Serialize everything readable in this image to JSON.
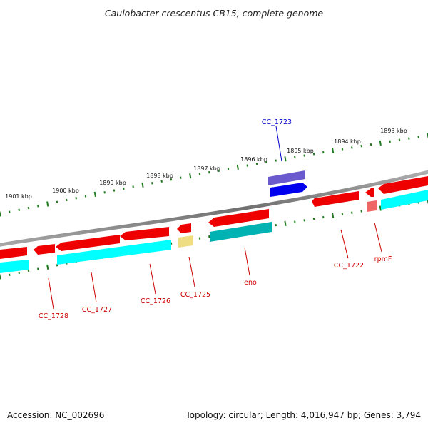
{
  "title": "Caulobacter crescentus CB15, complete genome",
  "footer": {
    "accession": "Accession: NC_002696",
    "topology": "Topology: circular; Length: 4,016,947 bp; Genes: 3,794"
  },
  "colors": {
    "backbone": "#8a8a8a",
    "tick": "#1f7a1f",
    "gene_red": "#ee0000",
    "gene_cyan": "#00ffff",
    "gene_blue": "#0000ee",
    "gene_purple": "#6a5acd",
    "gene_teal": "#00b2b2",
    "gene_yellow": "#eedd82",
    "gene_pink": "#ee6666",
    "label_red": "#cc0000",
    "label_blue": "#0000cc"
  },
  "kbp_labels": [
    "1901 kbp",
    "1900 kbp",
    "1899 kbp",
    "1898 kbp",
    "1897 kbp",
    "1896 kbp",
    "1895 kbp",
    "1894 kbp",
    "1893 kbp"
  ],
  "gene_labels": [
    "CC_1728",
    "CC_1727",
    "CC_1726",
    "CC_1725",
    "eno",
    "CC_1722",
    "rpmF",
    "CC_1723"
  ]
}
